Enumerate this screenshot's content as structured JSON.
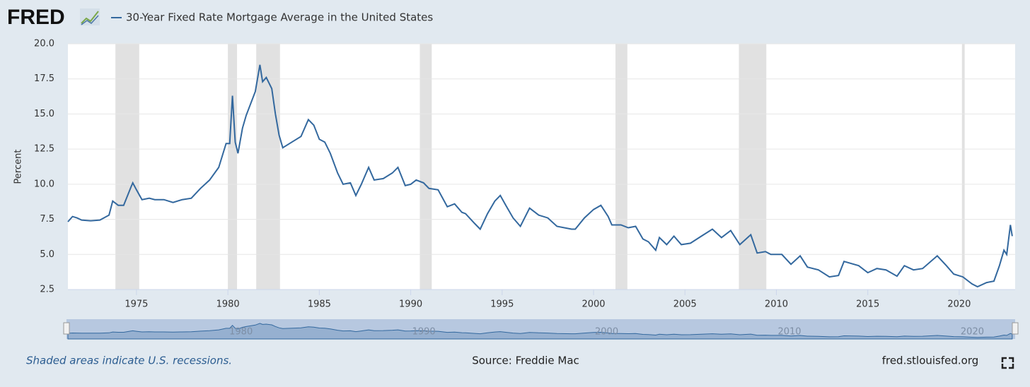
{
  "logo": "FRED",
  "chart_data": {
    "type": "line",
    "y_label": "Percent",
    "note": "Shaded areas indicate U.S. recessions.",
    "source": "Source: Freddie Mac",
    "site": "fred.stlouisfed.org",
    "xlim": [
      1971.25,
      2023.06
    ],
    "xticks": [
      1975,
      1980,
      1985,
      1990,
      1995,
      2000,
      2005,
      2010,
      2015,
      2020
    ],
    "ylim": [
      2.5,
      20
    ],
    "yticks": [
      2.5,
      {
        "value": 5,
        "label": "5.0"
      },
      7.5,
      {
        "value": 10,
        "label": "10.0"
      },
      12.5,
      {
        "value": 15,
        "label": "15.0"
      },
      17.5,
      {
        "value": 20,
        "label": "20.0"
      }
    ],
    "grid": true,
    "navigator_ticks": [
      1980,
      1990,
      2000,
      2010,
      2020
    ],
    "recessions": [
      [
        1973.85,
        1975.15
      ],
      [
        1980.0,
        1980.5
      ],
      [
        1981.55,
        1982.85
      ],
      [
        1990.5,
        1991.15
      ],
      [
        2001.2,
        2001.85
      ],
      [
        2007.95,
        2009.45
      ],
      [
        2020.15,
        2020.3
      ]
    ],
    "x": [
      1971.25,
      1971.5,
      1971.75,
      1972.0,
      1972.5,
      1973.0,
      1973.5,
      1973.7,
      1974.0,
      1974.3,
      1974.7,
      1974.8,
      1975.0,
      1975.3,
      1975.7,
      1976.0,
      1976.5,
      1977.0,
      1977.5,
      1978.0,
      1978.5,
      1979.0,
      1979.5,
      1979.9,
      1980.1,
      1980.25,
      1980.4,
      1980.55,
      1980.8,
      1981.0,
      1981.5,
      1981.75,
      1981.9,
      1982.1,
      1982.4,
      1982.6,
      1982.8,
      1983.0,
      1983.5,
      1984.0,
      1984.4,
      1984.7,
      1985.0,
      1985.3,
      1985.6,
      1986.0,
      1986.3,
      1986.7,
      1987.0,
      1987.3,
      1987.7,
      1988.0,
      1988.5,
      1989.0,
      1989.3,
      1989.7,
      1990.0,
      1990.3,
      1990.7,
      1991.0,
      1991.5,
      1992.0,
      1992.4,
      1992.8,
      1993.0,
      1993.5,
      1993.8,
      1994.2,
      1994.6,
      1994.9,
      1995.2,
      1995.6,
      1996.0,
      1996.5,
      1997.0,
      1997.5,
      1998.0,
      1998.8,
      1999.0,
      1999.5,
      2000.0,
      2000.4,
      2000.8,
      2001.0,
      2001.5,
      2001.9,
      2002.3,
      2002.7,
      2003.0,
      2003.4,
      2003.6,
      2004.0,
      2004.4,
      2004.8,
      2005.3,
      2005.9,
      2006.5,
      2007.0,
      2007.5,
      2008.0,
      2008.6,
      2008.95,
      2009.4,
      2009.7,
      2010.3,
      2010.8,
      2011.3,
      2011.7,
      2012.3,
      2012.9,
      2013.4,
      2013.7,
      2014.5,
      2015.0,
      2015.5,
      2016.0,
      2016.6,
      2017.0,
      2017.5,
      2018.0,
      2018.8,
      2019.3,
      2019.7,
      2020.2,
      2020.7,
      2021.0,
      2021.5,
      2021.9,
      2022.2,
      2022.45,
      2022.6,
      2022.8,
      2022.9
    ],
    "series": [
      {
        "name": "30-Year Fixed Rate Mortgage Average in the United States",
        "color": "#33689e",
        "values": [
          7.33,
          7.7,
          7.6,
          7.45,
          7.4,
          7.45,
          7.8,
          8.8,
          8.5,
          8.5,
          9.8,
          10.1,
          9.6,
          8.9,
          9.0,
          8.9,
          8.9,
          8.7,
          8.9,
          9.0,
          9.7,
          10.3,
          11.2,
          12.9,
          12.9,
          16.3,
          13.0,
          12.2,
          14.0,
          14.9,
          16.6,
          18.5,
          17.3,
          17.6,
          16.8,
          15.0,
          13.5,
          12.6,
          13.0,
          13.4,
          14.6,
          14.2,
          13.2,
          13.0,
          12.2,
          10.8,
          10.0,
          10.1,
          9.2,
          10.0,
          11.2,
          10.3,
          10.4,
          10.8,
          11.2,
          9.9,
          10.0,
          10.3,
          10.1,
          9.7,
          9.6,
          8.4,
          8.6,
          8.0,
          7.9,
          7.2,
          6.8,
          7.9,
          8.8,
          9.2,
          8.5,
          7.6,
          7.0,
          8.3,
          7.8,
          7.6,
          7.0,
          6.8,
          6.8,
          7.6,
          8.2,
          8.5,
          7.7,
          7.1,
          7.1,
          6.9,
          7.0,
          6.1,
          5.9,
          5.3,
          6.2,
          5.7,
          6.3,
          5.7,
          5.8,
          6.3,
          6.8,
          6.2,
          6.7,
          5.7,
          6.4,
          5.1,
          5.2,
          5.0,
          5.0,
          4.3,
          4.9,
          4.1,
          3.9,
          3.4,
          3.5,
          4.5,
          4.2,
          3.7,
          4.0,
          3.9,
          3.45,
          4.2,
          3.9,
          4.0,
          4.9,
          4.2,
          3.6,
          3.4,
          2.9,
          2.7,
          3.0,
          3.1,
          4.2,
          5.3,
          5.0,
          7.1,
          6.3
        ]
      }
    ]
  }
}
